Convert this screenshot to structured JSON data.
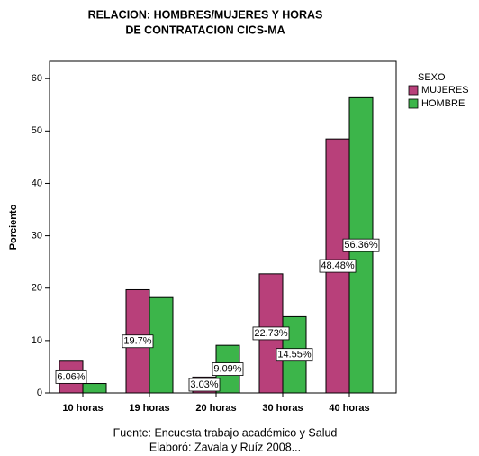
{
  "chart_data": {
    "type": "bar",
    "title": [
      "RELACION: HOMBRES/MUJERES Y HORAS",
      "DE CONTRATACION CICS-MA"
    ],
    "y_label": "Porciento",
    "legend_title": "SEXO",
    "footer": [
      "Fuente: Encuesta trabajo académico y Salud",
      "Elaboró: Zavala y Ruíz 2008..."
    ],
    "categories": [
      "10 horas",
      "19 horas",
      "20 horas",
      "30 horas",
      "40 horas"
    ],
    "series": [
      {
        "name": "MUJERES",
        "color": "#b8407a",
        "values": [
          6.06,
          19.7,
          3.03,
          22.73,
          48.48
        ],
        "value_labels": [
          "6.06%",
          "19.7%",
          "3.03%",
          "22.73%",
          "48.48%"
        ]
      },
      {
        "name": "HOMBRE",
        "color": "#3cb54a",
        "values": [
          1.8,
          18.2,
          9.09,
          14.55,
          56.36
        ],
        "value_labels": [
          null,
          null,
          "9.09%",
          "14.55%",
          "56.36%"
        ]
      }
    ],
    "ylim": [
      0,
      63.3
    ],
    "yticks": [
      0,
      10,
      20,
      30,
      40,
      50,
      60
    ],
    "legend": "right"
  }
}
